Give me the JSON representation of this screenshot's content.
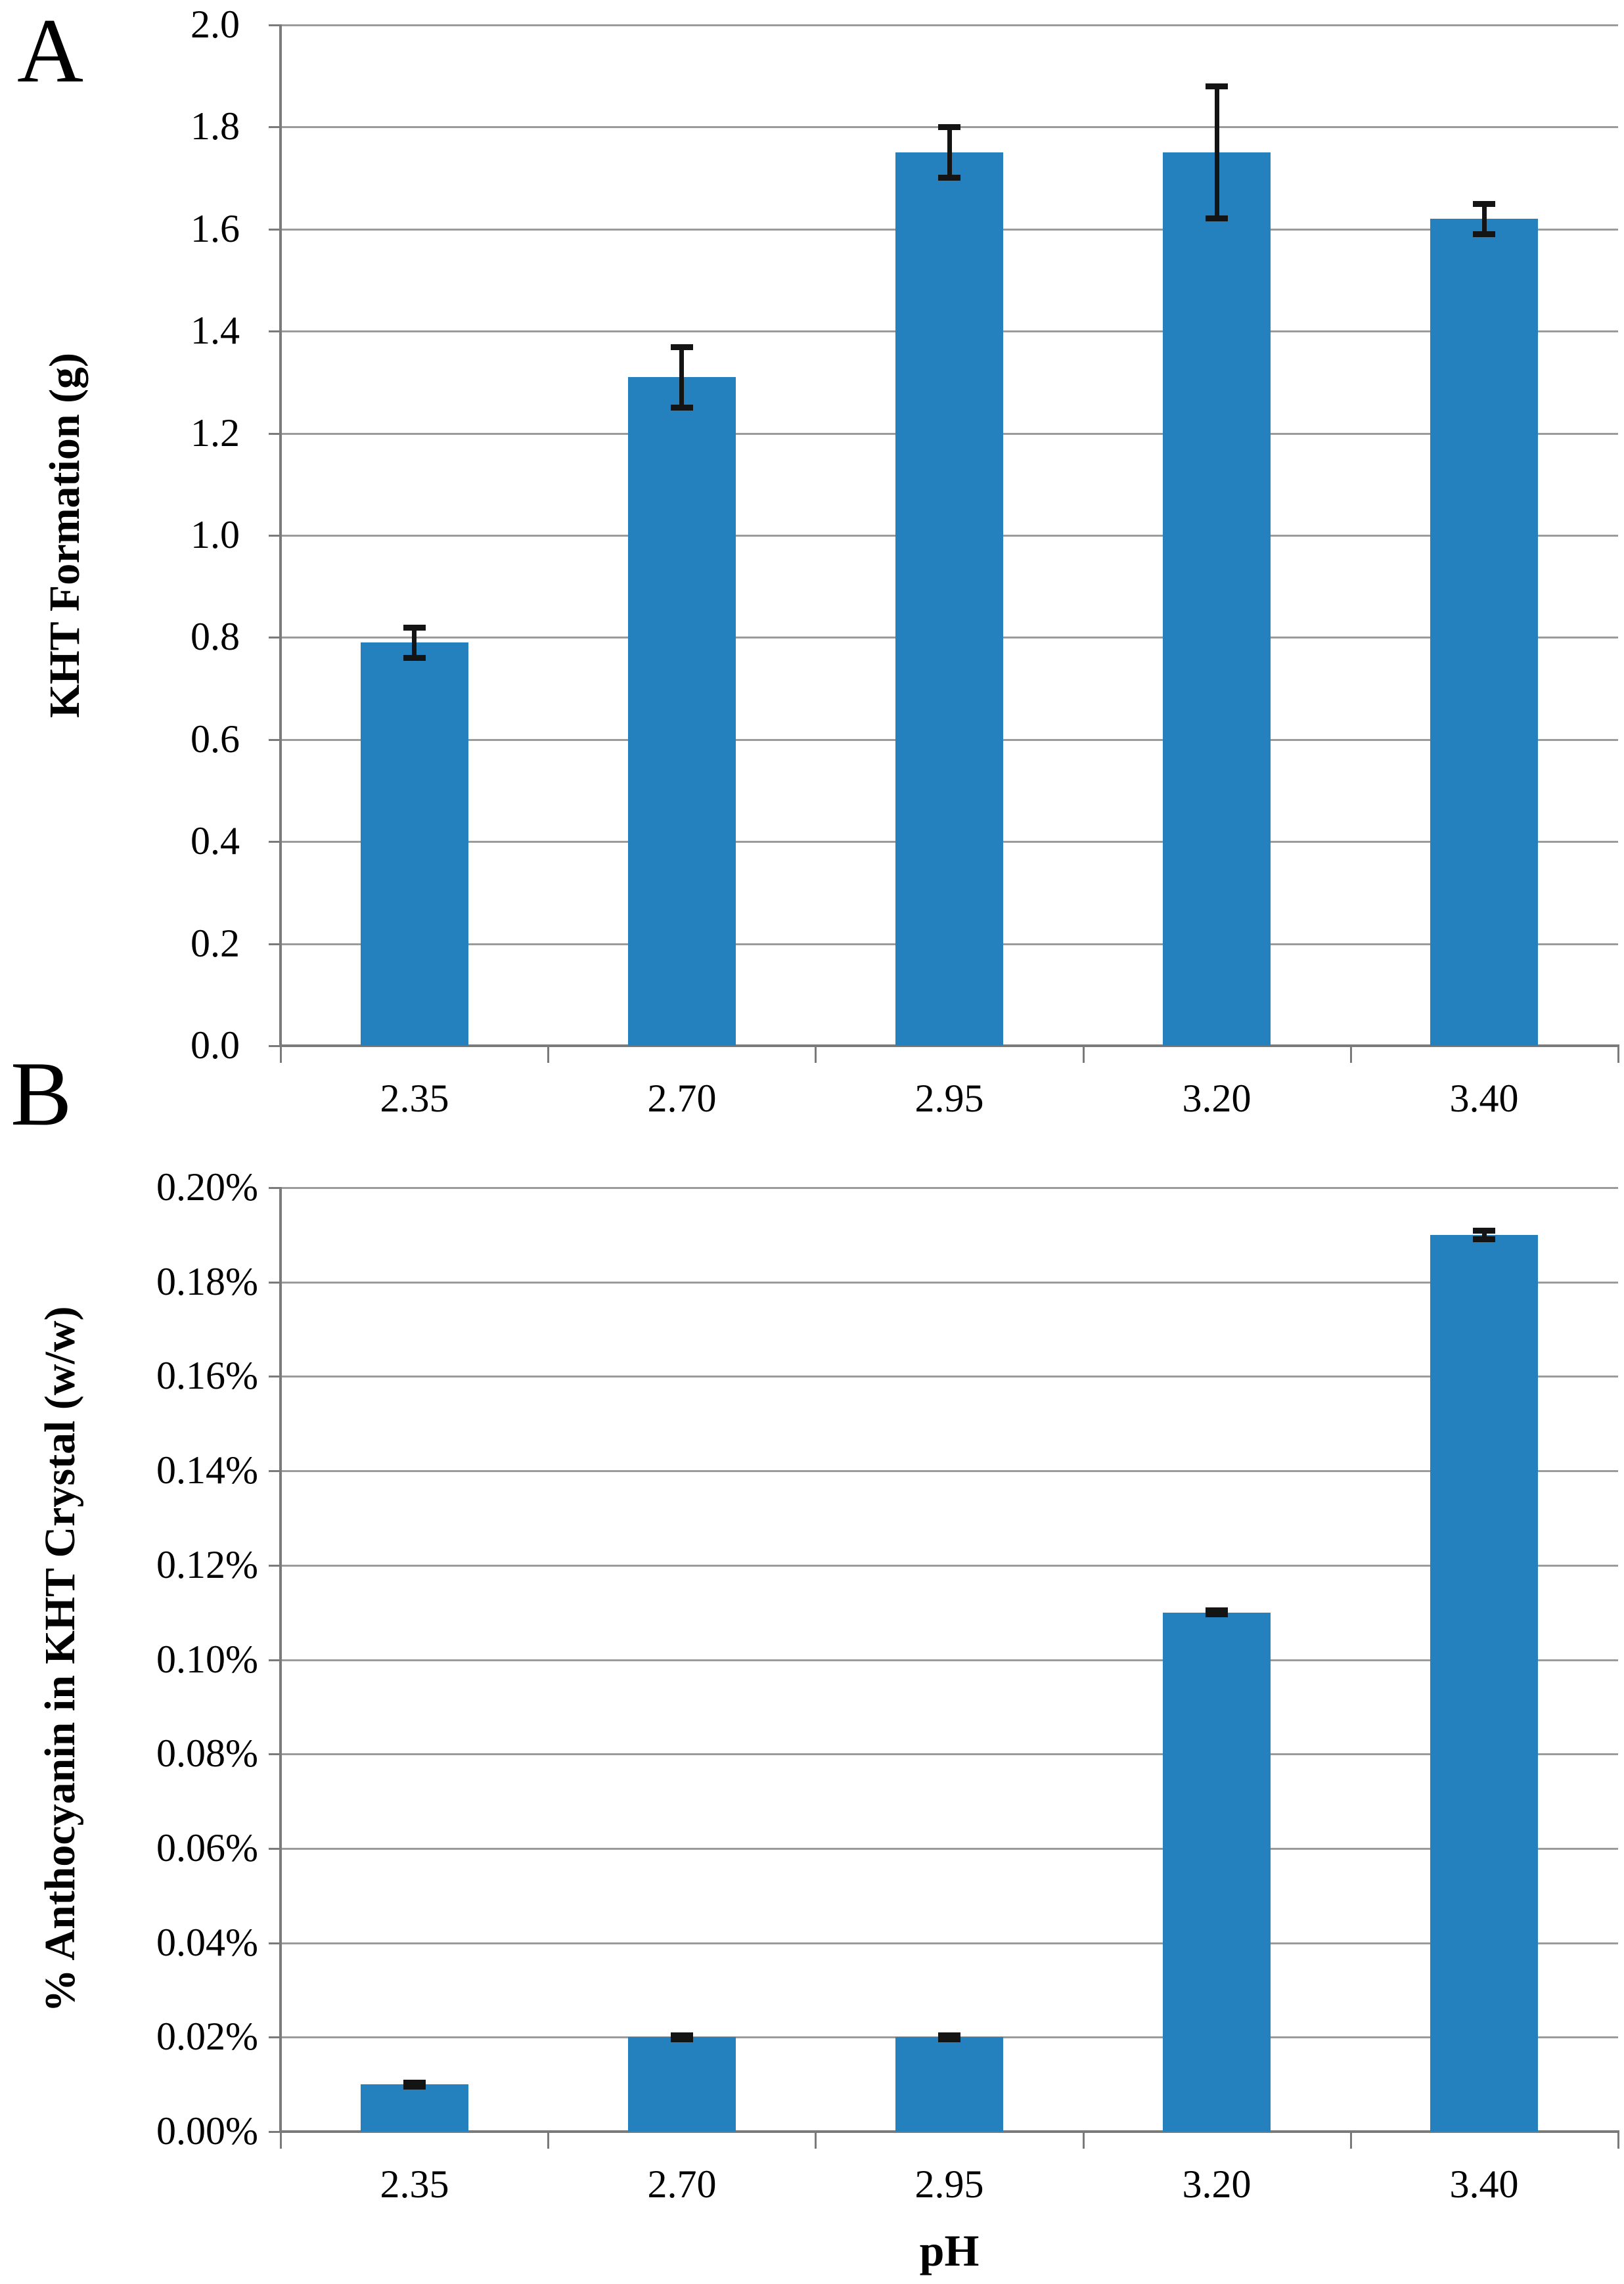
{
  "chart_data": [
    {
      "type": "bar",
      "panel_label": "A",
      "xlabel": "",
      "ylabel": "KHT Formation (g)",
      "categories": [
        "2.35",
        "2.70",
        "2.95",
        "3.20",
        "3.40"
      ],
      "values": [
        0.79,
        1.31,
        1.75,
        1.75,
        1.62
      ],
      "errors": [
        0.03,
        0.06,
        0.05,
        0.13,
        0.03
      ],
      "ylim": [
        0,
        2.0
      ],
      "ytick_step": 0.2,
      "ytick_labels": [
        "2.0",
        "1.8",
        "1.6",
        "1.4",
        "1.2",
        "1.0",
        "0.8",
        "0.6",
        "0.4",
        "0.2",
        "0.0"
      ],
      "grid": true,
      "legend": "none",
      "bar_color": "#2581BE"
    },
    {
      "type": "bar",
      "panel_label": "B",
      "xlabel": "pH",
      "ylabel": "% Anthocyanin in KHT Crystal (w/w)",
      "categories": [
        "2.35",
        "2.70",
        "2.95",
        "3.20",
        "3.40"
      ],
      "values": [
        0.01,
        0.02,
        0.02,
        0.11,
        0.19
      ],
      "values_unit": "percent w/w",
      "errors": [
        0.0005,
        0.0005,
        0.0005,
        0.0005,
        0.001
      ],
      "ylim": [
        0,
        0.2
      ],
      "ytick_step": 0.02,
      "ytick_labels": [
        "0.20%",
        "0.18%",
        "0.16%",
        "0.14%",
        "0.12%",
        "0.10%",
        "0.08%",
        "0.06%",
        "0.04%",
        "0.02%",
        "0.00%"
      ],
      "grid": true,
      "legend": "none",
      "bar_color": "#2581BE"
    }
  ]
}
